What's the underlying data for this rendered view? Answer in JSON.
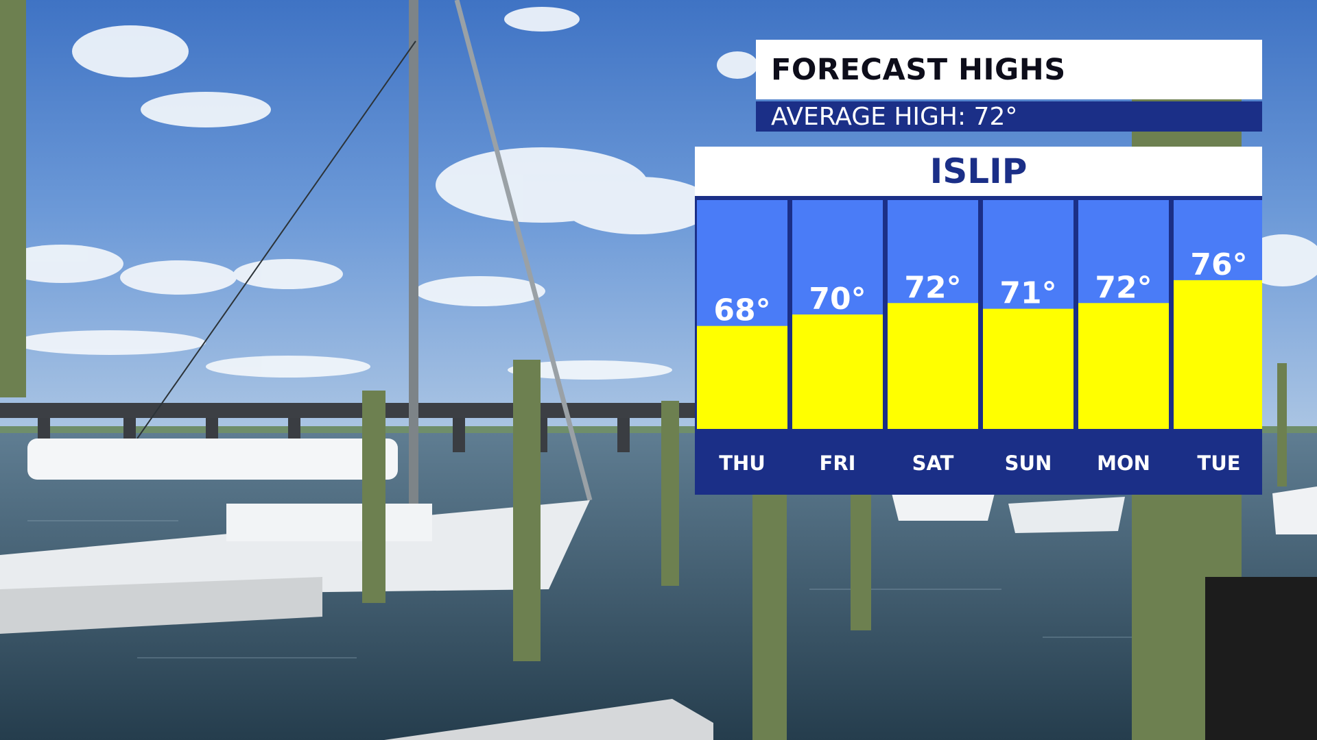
{
  "title": "FORECAST HIGHS",
  "subtitle": "AVERAGE HIGH: 72°",
  "location": "ISLIP",
  "colors": {
    "bar_fill": "#ffff00",
    "column_background": "#4a7cf7",
    "day_band": "#1b2f87",
    "title_text": "#0d0d1a",
    "accent": "#1b2f87"
  },
  "chart_data": {
    "type": "bar",
    "title": "FORECAST HIGHS",
    "subtitle": "AVERAGE HIGH: 72°",
    "location": "ISLIP",
    "categories": [
      "THU",
      "FRI",
      "SAT",
      "SUN",
      "MON",
      "TUE"
    ],
    "values": [
      68,
      70,
      72,
      71,
      72,
      76
    ],
    "value_labels": [
      "68°",
      "70°",
      "72°",
      "71°",
      "72°",
      "76°"
    ],
    "unit": "°",
    "xlabel": "",
    "ylabel": "",
    "ylim": [
      50,
      90
    ],
    "grid": false,
    "legend": "none"
  }
}
